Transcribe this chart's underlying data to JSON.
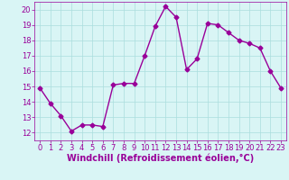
{
  "x": [
    0,
    1,
    2,
    3,
    4,
    5,
    6,
    7,
    8,
    9,
    10,
    11,
    12,
    13,
    14,
    15,
    16,
    17,
    18,
    19,
    20,
    21,
    22,
    23
  ],
  "y": [
    14.9,
    13.9,
    13.1,
    12.1,
    12.5,
    12.5,
    12.4,
    15.1,
    15.2,
    15.2,
    17.0,
    18.9,
    20.2,
    19.5,
    16.1,
    16.8,
    19.1,
    19.0,
    18.5,
    18.0,
    17.8,
    17.5,
    16.0,
    14.9
  ],
  "line_color": "#990099",
  "marker": "D",
  "marker_size": 2.5,
  "bg_color": "#d9f5f5",
  "grid_color": "#aadddd",
  "xlabel": "Windchill (Refroidissement éolien,°C)",
  "xlabel_color": "#990099",
  "xlabel_fontsize": 7,
  "tick_color": "#990099",
  "tick_fontsize": 6,
  "ylim": [
    11.5,
    20.5
  ],
  "yticks": [
    12,
    13,
    14,
    15,
    16,
    17,
    18,
    19,
    20
  ],
  "xlim": [
    -0.5,
    23.5
  ],
  "xticks": [
    0,
    1,
    2,
    3,
    4,
    5,
    6,
    7,
    8,
    9,
    10,
    11,
    12,
    13,
    14,
    15,
    16,
    17,
    18,
    19,
    20,
    21,
    22,
    23
  ],
  "spine_color": "#990099",
  "linewidth": 1.0
}
